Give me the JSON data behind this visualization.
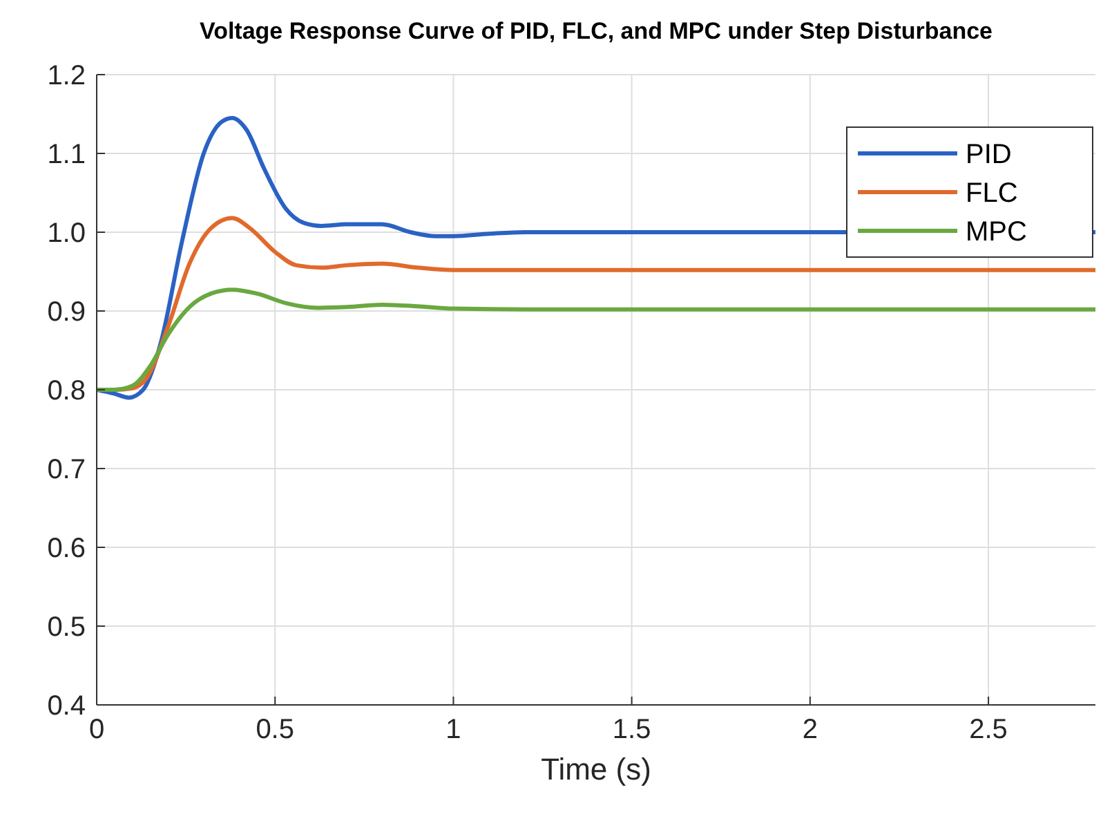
{
  "chart_data": {
    "type": "line",
    "title": "Voltage Response Curve of PID, FLC, and MPC under Step Disturbance",
    "xlabel": "Time (s)",
    "xlim": [
      0,
      2.8
    ],
    "xticks": [
      0,
      0.5,
      1,
      1.5,
      2,
      2.5
    ],
    "ylim": [
      0.4,
      1.2
    ],
    "yticks": [
      {
        "value": 0.4,
        "label": "0.4"
      },
      {
        "value": 0.5,
        "label": "0.5"
      },
      {
        "value": 0.6,
        "label": "0.6"
      },
      {
        "value": 0.7,
        "label": "0.7"
      },
      {
        "value": 0.8,
        "label": "0.8"
      },
      {
        "value": 0.9,
        "label": "0.9"
      },
      {
        "value": 1.0,
        "label": "1.0"
      },
      {
        "value": 1.1,
        "label": "1.1"
      },
      {
        "value": 1.2,
        "label": "1.2"
      }
    ],
    "grid": true,
    "legend": "top right",
    "line_style": "solid",
    "marker": "none",
    "series": [
      {
        "name": "PID",
        "color": "#2a62c4",
        "x": [
          0,
          0.05,
          0.09,
          0.13,
          0.18,
          0.24,
          0.3,
          0.35,
          0.38,
          0.42,
          0.47,
          0.53,
          0.58,
          0.63,
          0.7,
          0.8,
          0.88,
          0.95,
          1.0,
          1.1,
          1.2,
          1.5,
          2.0,
          2.8
        ],
        "values": [
          0.8,
          0.795,
          0.79,
          0.8,
          0.86,
          0.99,
          1.1,
          1.14,
          1.145,
          1.13,
          1.08,
          1.03,
          1.012,
          1.008,
          1.01,
          1.01,
          1.0,
          0.995,
          0.995,
          0.998,
          1.0,
          1.0,
          1.0,
          1.0
        ]
      },
      {
        "name": "FLC",
        "color": "#e06a2c",
        "x": [
          0,
          0.05,
          0.1,
          0.14,
          0.2,
          0.26,
          0.32,
          0.38,
          0.43,
          0.5,
          0.56,
          0.63,
          0.7,
          0.8,
          0.9,
          1.0,
          1.2,
          1.5,
          2.0,
          2.5,
          2.8
        ],
        "values": [
          0.8,
          0.8,
          0.802,
          0.815,
          0.88,
          0.96,
          1.005,
          1.018,
          1.005,
          0.975,
          0.958,
          0.955,
          0.958,
          0.96,
          0.955,
          0.952,
          0.952,
          0.952,
          0.952,
          0.952,
          0.952
        ]
      },
      {
        "name": "MPC",
        "color": "#6aa840",
        "x": [
          0,
          0.05,
          0.1,
          0.15,
          0.2,
          0.26,
          0.32,
          0.38,
          0.45,
          0.53,
          0.62,
          0.7,
          0.8,
          0.9,
          1.0,
          1.2,
          1.5,
          2.0,
          2.5,
          2.8
        ],
        "values": [
          0.8,
          0.8,
          0.805,
          0.83,
          0.87,
          0.905,
          0.922,
          0.927,
          0.922,
          0.91,
          0.904,
          0.905,
          0.908,
          0.906,
          0.903,
          0.902,
          0.902,
          0.902,
          0.902,
          0.902
        ]
      }
    ]
  }
}
